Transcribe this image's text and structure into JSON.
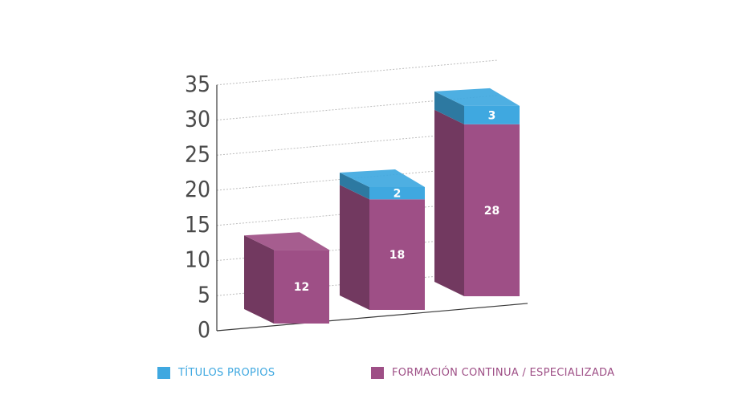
{
  "chart_data": {
    "type": "bar",
    "stacked": true,
    "three_d": true,
    "categories": [
      "",
      "",
      ""
    ],
    "series": [
      {
        "name": "FORMACIÓN CONTINUA / ESPECIALIZADA",
        "values": [
          12,
          18,
          28
        ],
        "color": "#9e4f86"
      },
      {
        "name": "TÍTULOS PROPIOS",
        "values": [
          0,
          2,
          3
        ],
        "color": "#3fa8e0"
      }
    ],
    "ylim": [
      0,
      35
    ],
    "yticks": [
      0,
      5,
      10,
      15,
      20,
      25,
      30,
      35
    ],
    "grid": "dashed",
    "legend_position": "bottom"
  },
  "legend": {
    "items": [
      {
        "label": "TÍTULOS PROPIOS",
        "color": "#3fa8e0"
      },
      {
        "label": "FORMACIÓN CONTINUA / ESPECIALIZADA",
        "color": "#9e4f86"
      }
    ]
  }
}
